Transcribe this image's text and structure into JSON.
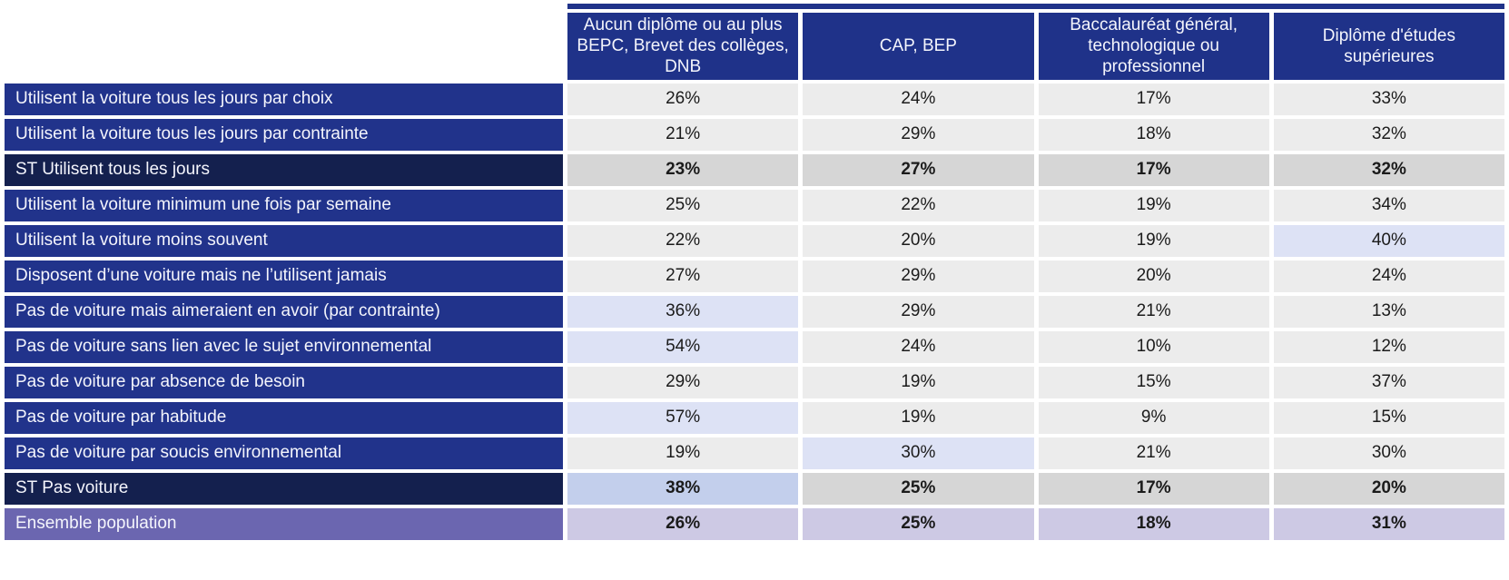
{
  "colors": {
    "top_bar": "#1f3289",
    "header_bg": "#1f3289",
    "row_label_bg": "#21338b",
    "subtotal_label_bg": "#14204e",
    "total_label_bg": "#6b66b0",
    "label_text": "#f4f5fc",
    "value_text": "#1b1b1b",
    "cell_bg": "#ececec",
    "subtotal_cell_bg": "#d6d6d6",
    "total_cell_bg": "#cdc9e4",
    "highlight_cell_bg": "#dde2f5",
    "highlight_strong_cell_bg": "#c3cfec"
  },
  "chart_data": {
    "type": "table",
    "title": "",
    "columns": [
      "Aucun diplôme ou au plus BEPC, Brevet des collèges, DNB",
      "CAP, BEP",
      "Baccalauréat général, technologique ou professionnel",
      "Diplôme d'études supérieures"
    ],
    "rows": [
      {
        "label": "Utilisent la voiture tous les jours par choix",
        "type": "normal",
        "values": [
          "26%",
          "24%",
          "17%",
          "33%"
        ],
        "highlights": []
      },
      {
        "label": "Utilisent la voiture tous les jours par contrainte",
        "type": "normal",
        "values": [
          "21%",
          "29%",
          "18%",
          "32%"
        ],
        "highlights": []
      },
      {
        "label": "ST Utilisent tous les jours",
        "type": "subtotal",
        "values": [
          "23%",
          "27%",
          "17%",
          "32%"
        ],
        "highlights": []
      },
      {
        "label": "Utilisent la voiture minimum une fois par semaine",
        "type": "normal",
        "values": [
          "25%",
          "22%",
          "19%",
          "34%"
        ],
        "highlights": []
      },
      {
        "label": "Utilisent la voiture moins souvent",
        "type": "normal",
        "values": [
          "22%",
          "20%",
          "19%",
          "40%"
        ],
        "highlights": [
          3
        ]
      },
      {
        "label": "Disposent d’une voiture mais ne l’utilisent jamais",
        "type": "normal",
        "values": [
          "27%",
          "29%",
          "20%",
          "24%"
        ],
        "highlights": []
      },
      {
        "label": "Pas de voiture mais aimeraient en avoir (par contrainte)",
        "type": "normal",
        "values": [
          "36%",
          "29%",
          "21%",
          "13%"
        ],
        "highlights": [
          0
        ]
      },
      {
        "label": "Pas de voiture sans lien avec le sujet environnemental",
        "type": "normal",
        "values": [
          "54%",
          "24%",
          "10%",
          "12%"
        ],
        "highlights": [
          0
        ]
      },
      {
        "label": "Pas de voiture par absence de besoin",
        "type": "normal",
        "values": [
          "29%",
          "19%",
          "15%",
          "37%"
        ],
        "highlights": []
      },
      {
        "label": "Pas de voiture par habitude",
        "type": "normal",
        "values": [
          "57%",
          "19%",
          "9%",
          "15%"
        ],
        "highlights": [
          0
        ]
      },
      {
        "label": "Pas de voiture par soucis environnemental",
        "type": "normal",
        "values": [
          "19%",
          "30%",
          "21%",
          "30%"
        ],
        "highlights": [
          1
        ]
      },
      {
        "label": "ST Pas voiture",
        "type": "subtotal",
        "values": [
          "38%",
          "25%",
          "17%",
          "20%"
        ],
        "highlights": [
          0
        ]
      },
      {
        "label": "Ensemble population",
        "type": "total",
        "values": [
          "26%",
          "25%",
          "18%",
          "31%"
        ],
        "highlights": []
      }
    ]
  }
}
